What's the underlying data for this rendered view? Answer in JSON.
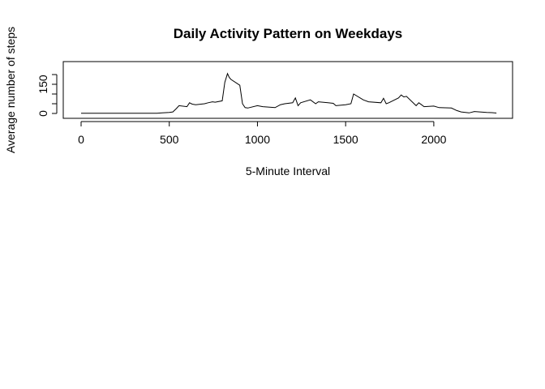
{
  "chart_data": {
    "type": "line",
    "title": "Daily Activity Pattern on Weekdays",
    "xlabel": "5-Minute Interval",
    "ylabel": "Average number of steps",
    "xlim": [
      0,
      2400
    ],
    "ylim": [
      0,
      240
    ],
    "xticks": [
      0,
      500,
      1000,
      1500,
      2000
    ],
    "yticks": [
      0,
      50,
      100,
      150,
      200
    ],
    "ytick_labels": [
      "0",
      "",
      "",
      "150",
      ""
    ],
    "grid": false,
    "legend": "none",
    "line_color": "#000000",
    "series": [
      {
        "x": [
          0,
          100,
          200,
          300,
          400,
          430,
          460,
          500,
          520,
          540,
          555,
          600,
          615,
          630,
          650,
          700,
          720,
          745,
          760,
          800,
          815,
          830,
          840,
          850,
          900,
          915,
          930,
          945,
          1000,
          1030,
          1100,
          1130,
          1155,
          1200,
          1215,
          1230,
          1245,
          1300,
          1330,
          1345,
          1400,
          1430,
          1445,
          1500,
          1530,
          1545,
          1600,
          1630,
          1700,
          1715,
          1730,
          1745,
          1800,
          1815,
          1830,
          1845,
          1900,
          1915,
          1930,
          1945,
          2000,
          2030,
          2100,
          2130,
          2155,
          2200,
          2230,
          2300,
          2330,
          2355
        ],
        "y": [
          1,
          1,
          1,
          1,
          1,
          1,
          3,
          5,
          8,
          25,
          40,
          35,
          55,
          48,
          45,
          50,
          55,
          60,
          58,
          65,
          160,
          205,
          185,
          175,
          145,
          50,
          30,
          28,
          40,
          35,
          30,
          45,
          50,
          55,
          80,
          40,
          55,
          70,
          50,
          60,
          55,
          52,
          40,
          45,
          50,
          100,
          70,
          60,
          55,
          78,
          50,
          55,
          80,
          95,
          85,
          88,
          40,
          55,
          45,
          35,
          38,
          30,
          28,
          15,
          8,
          3,
          10,
          5,
          4,
          2
        ]
      }
    ]
  }
}
